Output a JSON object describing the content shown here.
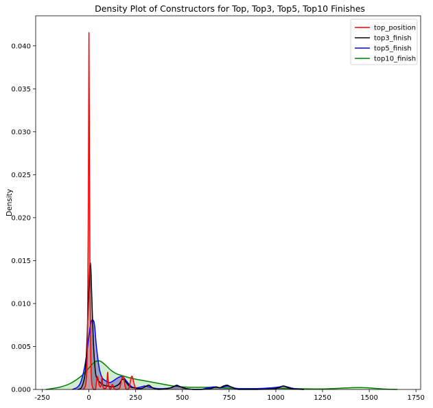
{
  "chart_data": {
    "type": "area",
    "title": "Density Plot of Constructors for Top, Top3, Top5, Top10 Finishes",
    "xlabel": "",
    "ylabel": "Density",
    "xlim": [
      -285,
      1775
    ],
    "ylim": [
      0,
      0.0435
    ],
    "xticks": [
      -250,
      0,
      250,
      500,
      750,
      1000,
      1250,
      1500,
      1750
    ],
    "yticks": [
      0.0,
      0.005,
      0.01,
      0.015,
      0.02,
      0.025,
      0.03,
      0.035,
      0.04
    ],
    "ytick_labels": [
      "0.000",
      "0.005",
      "0.010",
      "0.015",
      "0.020",
      "0.025",
      "0.030",
      "0.035",
      "0.040"
    ],
    "grid": false,
    "legend_position": "top-right",
    "series": [
      {
        "name": "top_position",
        "color": "#ff0000",
        "fill": "#e8a0a0",
        "x": [
          -30,
          -15,
          -8,
          -3,
          0,
          3,
          6,
          10,
          15,
          25,
          35,
          45,
          55,
          65,
          70,
          75,
          85,
          95,
          100,
          105,
          115,
          125,
          135,
          150,
          165,
          175,
          182,
          188,
          195,
          205,
          215,
          225,
          232,
          240,
          250,
          260
        ],
        "y": [
          0.0,
          0.001,
          0.006,
          0.022,
          0.0415,
          0.026,
          0.011,
          0.0035,
          0.0008,
          0.0,
          0.0,
          0.0015,
          0.0005,
          0.0004,
          0.0015,
          0.0003,
          0.0001,
          0.0004,
          0.002,
          0.0006,
          0.0,
          0.0006,
          0.0001,
          0.0,
          0.0002,
          0.0012,
          0.0015,
          0.0012,
          0.0002,
          0.0,
          0.0002,
          0.0013,
          0.0015,
          0.0008,
          0.0001,
          0.0
        ]
      },
      {
        "name": "top3_finish",
        "color": "#000000",
        "fill": "#8a8a8a",
        "x": [
          -60,
          -40,
          -20,
          -10,
          0,
          5,
          10,
          15,
          25,
          35,
          45,
          60,
          80,
          100,
          130,
          160,
          180,
          200,
          220,
          240,
          260,
          280,
          300,
          320,
          340,
          370,
          420,
          450,
          470,
          490,
          520,
          560,
          600,
          650,
          680,
          700,
          720,
          740,
          760,
          800,
          900,
          1000,
          1040,
          1080,
          1150
        ],
        "y": [
          0.0,
          0.0002,
          0.002,
          0.006,
          0.012,
          0.0145,
          0.0142,
          0.011,
          0.005,
          0.002,
          0.0012,
          0.0008,
          0.0005,
          0.0004,
          0.0003,
          0.0006,
          0.0012,
          0.0008,
          0.0003,
          0.0002,
          0.0001,
          0.0001,
          0.0003,
          0.0005,
          0.0002,
          0.0,
          0.0001,
          0.0003,
          0.0005,
          0.0003,
          0.0001,
          0.0,
          0.0,
          0.0001,
          0.0003,
          0.0002,
          0.0004,
          0.0005,
          0.0003,
          0.0,
          0.0,
          0.0001,
          0.0004,
          0.0001,
          0.0
        ]
      },
      {
        "name": "top5_finish",
        "color": "#0000ff",
        "fill": "#7070b8",
        "x": [
          -90,
          -60,
          -40,
          -20,
          0,
          10,
          20,
          30,
          40,
          55,
          70,
          90,
          110,
          130,
          150,
          170,
          185,
          200,
          215,
          230,
          245,
          260,
          280,
          300,
          320,
          340,
          370,
          400,
          440,
          465,
          490,
          520,
          560,
          600,
          640,
          670,
          700,
          720,
          740,
          760,
          800,
          900,
          980,
          1020,
          1040,
          1060,
          1100,
          1150
        ],
        "y": [
          0.0,
          0.0003,
          0.0011,
          0.003,
          0.0062,
          0.0077,
          0.0081,
          0.0075,
          0.005,
          0.0025,
          0.0014,
          0.001,
          0.0008,
          0.001,
          0.0013,
          0.0015,
          0.0014,
          0.001,
          0.0006,
          0.0003,
          0.0002,
          0.0002,
          0.0003,
          0.0004,
          0.0003,
          0.0002,
          0.0001,
          0.0001,
          0.0002,
          0.0004,
          0.0003,
          0.0001,
          0.0,
          0.0,
          0.0002,
          0.0003,
          0.0002,
          0.0003,
          0.0004,
          0.0003,
          0.0001,
          0.0001,
          0.0002,
          0.0003,
          0.0004,
          0.0003,
          0.0001,
          0.0
        ]
      },
      {
        "name": "top10_finish",
        "color": "#008000",
        "fill": "#b3dfb3",
        "x": [
          -230,
          -200,
          -150,
          -100,
          -50,
          -20,
          0,
          20,
          40,
          60,
          80,
          100,
          120,
          150,
          180,
          210,
          250,
          300,
          350,
          400,
          450,
          500,
          550,
          600,
          650,
          700,
          750,
          800,
          850,
          900,
          950,
          1000,
          1050,
          1100,
          1150,
          1200,
          1250,
          1300,
          1350,
          1400,
          1450,
          1500,
          1550,
          1600,
          1650
        ],
        "y": [
          0.0,
          0.0001,
          0.0003,
          0.0007,
          0.0014,
          0.002,
          0.0025,
          0.003,
          0.0033,
          0.0033,
          0.003,
          0.0026,
          0.0022,
          0.0018,
          0.0016,
          0.0014,
          0.0012,
          0.001,
          0.0008,
          0.0006,
          0.0004,
          0.0003,
          0.00025,
          0.00025,
          0.00025,
          0.0002,
          0.00015,
          0.0001,
          0.0001,
          0.0001,
          0.00012,
          0.00015,
          0.00012,
          0.0001,
          8e-05,
          6e-05,
          6e-05,
          0.0001,
          0.00015,
          0.0002,
          0.00022,
          0.00018,
          0.0001,
          3e-05,
          0.0
        ]
      }
    ]
  }
}
